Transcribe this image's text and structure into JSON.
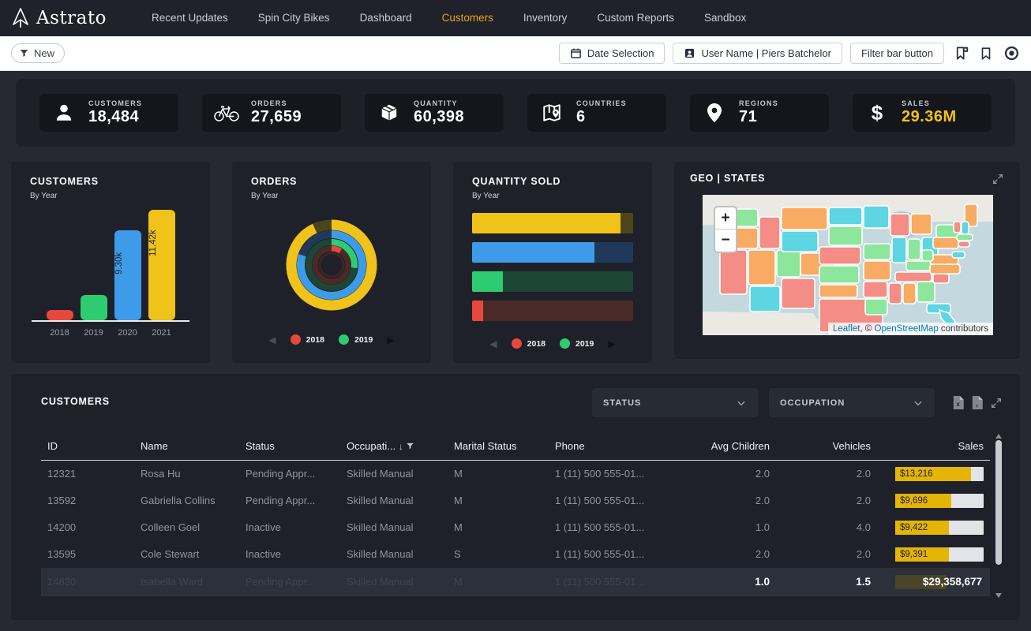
{
  "nav": {
    "brand": "Astrato",
    "items": [
      {
        "label": "Recent Updates",
        "active": false
      },
      {
        "label": "Spin City Bikes",
        "active": false
      },
      {
        "label": "Dashboard",
        "active": false
      },
      {
        "label": "Customers",
        "active": true
      },
      {
        "label": "Inventory",
        "active": false
      },
      {
        "label": "Custom Reports",
        "active": false
      },
      {
        "label": "Sandbox",
        "active": false
      }
    ]
  },
  "toolbar": {
    "new_button": "New",
    "date_selection": "Date Selection",
    "user_button": "User Name | Piers Batchelor",
    "filter_bar_button": "Filter bar button"
  },
  "colors": {
    "accent_yellow": "#efc319",
    "blue": "#3e9be9",
    "green": "#2ecc71",
    "red": "#e8473c",
    "yellow_track": "#4d451a",
    "blue_track": "#20395a",
    "green_track": "#1d4634",
    "red_track": "#4a2a27",
    "nav_active": "#eda212"
  },
  "kpis": [
    {
      "icon": "person-icon",
      "label": "CUSTOMERS",
      "value": "18,484",
      "accent": false
    },
    {
      "icon": "bicycle-icon",
      "label": "ORDERS",
      "value": "27,659",
      "accent": false
    },
    {
      "icon": "box-icon",
      "label": "QUANTITY",
      "value": "60,398",
      "accent": false
    },
    {
      "icon": "map-icon",
      "label": "COUNTRIES",
      "value": "6",
      "accent": false
    },
    {
      "icon": "pin-icon",
      "label": "REGIONS",
      "value": "71",
      "accent": false
    },
    {
      "icon": "dollar-icon",
      "label": "SALES",
      "value": "29.36M",
      "accent": true
    }
  ],
  "chart_data": [
    {
      "type": "bar",
      "title": "CUSTOMERS",
      "subtitle": "By Year",
      "categories": [
        "2018",
        "2019",
        "2020",
        "2021"
      ],
      "values": [
        1050,
        2650,
        9300,
        11420
      ],
      "value_labels": [
        "",
        "",
        "9.30k",
        "11.42k"
      ],
      "bar_colors": [
        "#e8473c",
        "#2ecc71",
        "#3e9be9",
        "#efc319"
      ],
      "ylim": [
        0,
        11420
      ]
    },
    {
      "type": "radial",
      "title": "ORDERS",
      "subtitle": "By Year",
      "rings_outer_to_inner": [
        {
          "name": "2021",
          "pct": 93,
          "color": "#efc319",
          "track": "#4d451a"
        },
        {
          "name": "2020",
          "pct": 80,
          "color": "#3e9be9",
          "track": "#20395a"
        },
        {
          "name": "2019",
          "pct": 27,
          "color": "#2ecc71",
          "track": "#1d4634"
        },
        {
          "name": "2018",
          "pct": 9,
          "color": "#e8473c",
          "track": "#4a2a27"
        }
      ]
    },
    {
      "type": "hbar",
      "title": "QUANTITY SOLD",
      "subtitle": "By Year",
      "bars_top_to_bottom": [
        {
          "name": "2021",
          "pct": 92,
          "color": "#efc319",
          "track": "#4d451a"
        },
        {
          "name": "2020",
          "pct": 76,
          "color": "#3e9be9",
          "track": "#20395a"
        },
        {
          "name": "2019",
          "pct": 19,
          "color": "#2ecc71",
          "track": "#1d4634"
        },
        {
          "name": "2018",
          "pct": 7,
          "color": "#e8473c",
          "track": "#4a2a27"
        }
      ]
    }
  ],
  "legend": {
    "items": [
      {
        "label": "2018",
        "color": "#e8473c"
      },
      {
        "label": "2019",
        "color": "#2ecc71"
      }
    ]
  },
  "geo": {
    "title": "GEO | STATES",
    "zoom_in": "+",
    "zoom_out": "−",
    "attribution": {
      "leaflet": "Leaflet",
      "sep": ", © ",
      "osm": "OpenStreetMap",
      "rest": " contributors"
    },
    "state_palette": {
      "orange": "#f9ab63",
      "green": "#8ce79d",
      "salmon": "#f38d86",
      "cyan": "#5dd5e2"
    },
    "states": [
      {
        "name": "WA",
        "color": "green"
      },
      {
        "name": "OR",
        "color": "orange"
      },
      {
        "name": "CA",
        "color": "salmon"
      },
      {
        "name": "ID",
        "color": "salmon"
      },
      {
        "name": "NV",
        "color": "orange"
      },
      {
        "name": "UT",
        "color": "green"
      },
      {
        "name": "AZ",
        "color": "cyan"
      },
      {
        "name": "MT",
        "color": "orange"
      },
      {
        "name": "WY",
        "color": "cyan"
      },
      {
        "name": "CO",
        "color": "orange"
      },
      {
        "name": "NM",
        "color": "salmon"
      },
      {
        "name": "ND",
        "color": "cyan"
      },
      {
        "name": "SD",
        "color": "green"
      },
      {
        "name": "NE",
        "color": "salmon"
      },
      {
        "name": "KS",
        "color": "green"
      },
      {
        "name": "OK",
        "color": "orange"
      },
      {
        "name": "TX",
        "color": "salmon"
      },
      {
        "name": "MN",
        "color": "cyan"
      },
      {
        "name": "IA",
        "color": "green"
      },
      {
        "name": "MO",
        "color": "orange"
      },
      {
        "name": "AR",
        "color": "salmon"
      },
      {
        "name": "LA",
        "color": "green"
      },
      {
        "name": "WI",
        "color": "salmon"
      },
      {
        "name": "IL",
        "color": "cyan"
      },
      {
        "name": "MI",
        "color": "orange"
      },
      {
        "name": "IN",
        "color": "green"
      },
      {
        "name": "OH",
        "color": "cyan"
      },
      {
        "name": "KY",
        "color": "green"
      },
      {
        "name": "TN",
        "color": "salmon"
      },
      {
        "name": "MS",
        "color": "salmon"
      },
      {
        "name": "AL",
        "color": "orange"
      },
      {
        "name": "GA",
        "color": "green"
      },
      {
        "name": "FL",
        "color": "cyan"
      },
      {
        "name": "SC",
        "color": "salmon"
      },
      {
        "name": "NC",
        "color": "orange"
      },
      {
        "name": "VA",
        "color": "orange"
      },
      {
        "name": "WV",
        "color": "green"
      },
      {
        "name": "PA",
        "color": "orange"
      },
      {
        "name": "NY",
        "color": "green"
      },
      {
        "name": "MD",
        "color": "cyan"
      },
      {
        "name": "ME",
        "color": "orange"
      },
      {
        "name": "VT",
        "color": "salmon"
      },
      {
        "name": "NH",
        "color": "cyan"
      },
      {
        "name": "MA",
        "color": "green"
      },
      {
        "name": "CT",
        "color": "salmon"
      }
    ]
  },
  "table": {
    "title": "CUSTOMERS",
    "filters": [
      {
        "label": "STATUS"
      },
      {
        "label": "OCCUPATION"
      }
    ],
    "columns": [
      "ID",
      "Name",
      "Status",
      "Occupati...",
      "Marital Status",
      "Phone",
      "Avg Children",
      "Vehicles",
      "Sales"
    ],
    "rows": [
      {
        "id": "12321",
        "name": "Rosa Hu",
        "status": "Pending Appr...",
        "occupation": "Skilled Manual",
        "marital": "M",
        "phone": "1 (11) 500 555-01...",
        "avg_children": "2.0",
        "vehicles": "2.0",
        "sales": "$13,216",
        "sales_pct": 86
      },
      {
        "id": "13592",
        "name": "Gabriella Collins",
        "status": "Pending Appr...",
        "occupation": "Skilled Manual",
        "marital": "M",
        "phone": "1 (11) 500 555-01...",
        "avg_children": "2.0",
        "vehicles": "2.0",
        "sales": "$9,696",
        "sales_pct": 63
      },
      {
        "id": "14200",
        "name": "Colleen Goel",
        "status": "Inactive",
        "occupation": "Skilled Manual",
        "marital": "M",
        "phone": "1 (11) 500 555-01...",
        "avg_children": "1.0",
        "vehicles": "4.0",
        "sales": "$9,422",
        "sales_pct": 61
      },
      {
        "id": "13595",
        "name": "Cole Stewart",
        "status": "Inactive",
        "occupation": "Skilled Manual",
        "marital": "S",
        "phone": "1 (11) 500 555-01...",
        "avg_children": "2.0",
        "vehicles": "2.0",
        "sales": "$9,391",
        "sales_pct": 61
      }
    ],
    "ghost_row": {
      "id": "14830",
      "name": "Isabella Ward",
      "status": "Pending Appr...",
      "occupation": "Skilled Manual",
      "marital": "M",
      "phone": "1 (11) 500 555-01..."
    },
    "totals": {
      "avg_children": "1.0",
      "vehicles": "1.5",
      "sales": "$29,358,677"
    }
  }
}
